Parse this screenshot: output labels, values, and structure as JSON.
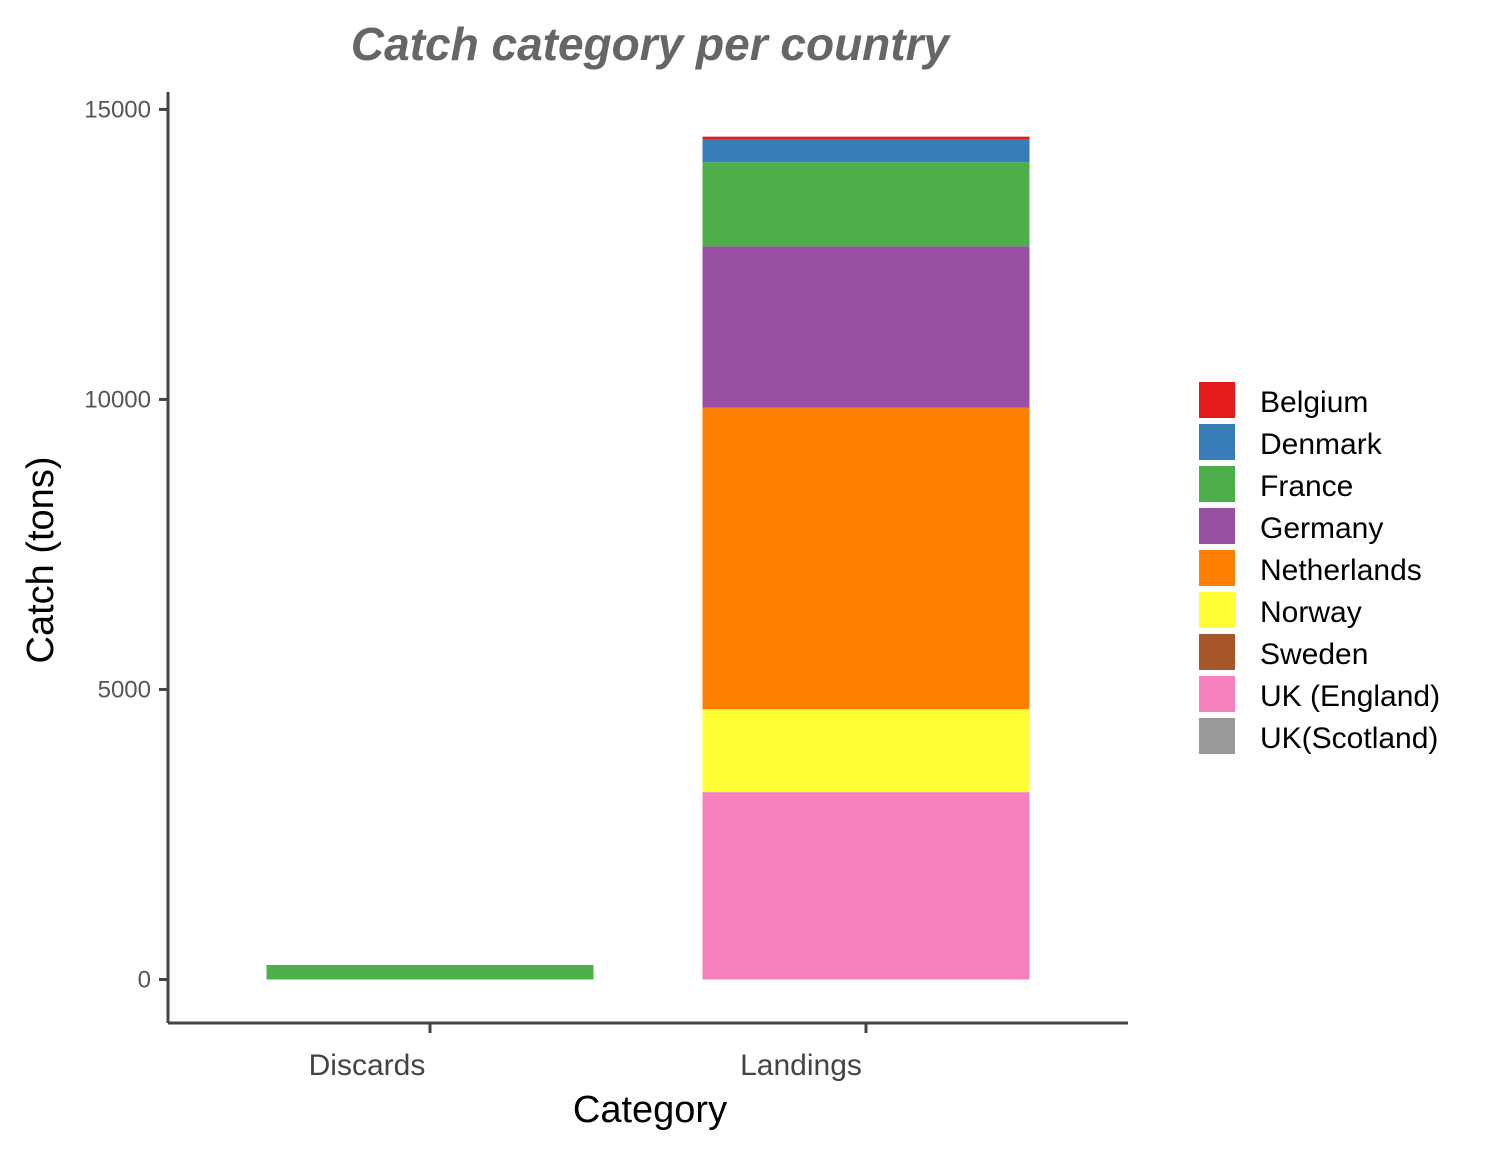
{
  "chart_data": {
    "type": "bar",
    "stacked": true,
    "title": "Catch category per country",
    "xlabel": "Category",
    "ylabel": "Catch (tons)",
    "categories": [
      "Discards",
      "Landings"
    ],
    "ylim": [
      -750,
      15300
    ],
    "yticks": [
      0,
      5000,
      10000,
      15000
    ],
    "grid": false,
    "legend_position": "right",
    "series": [
      {
        "name": "UK (England)",
        "color": "#F781BF",
        "values": [
          0,
          3230
        ]
      },
      {
        "name": "Norway",
        "color": "#FFFF33",
        "values": [
          0,
          1430
        ]
      },
      {
        "name": "Netherlands",
        "color": "#FF7F00",
        "values": [
          0,
          5200
        ]
      },
      {
        "name": "Germany",
        "color": "#984EA3",
        "values": [
          0,
          2780
        ]
      },
      {
        "name": "France",
        "color": "#4DAF4A",
        "values": [
          250,
          1450
        ]
      },
      {
        "name": "Denmark",
        "color": "#377EB8",
        "values": [
          0,
          400
        ]
      },
      {
        "name": "Belgium",
        "color": "#E41A1C",
        "values": [
          0,
          40
        ]
      },
      {
        "name": "Sweden",
        "color": "#A65628",
        "values": [
          0,
          0
        ]
      },
      {
        "name": "UK(Scotland)",
        "color": "#999999",
        "values": [
          0,
          0
        ]
      }
    ],
    "legend_order": [
      "Belgium",
      "Denmark",
      "France",
      "Germany",
      "Netherlands",
      "Norway",
      "Sweden",
      "UK (England)",
      "UK(Scotland)"
    ]
  }
}
